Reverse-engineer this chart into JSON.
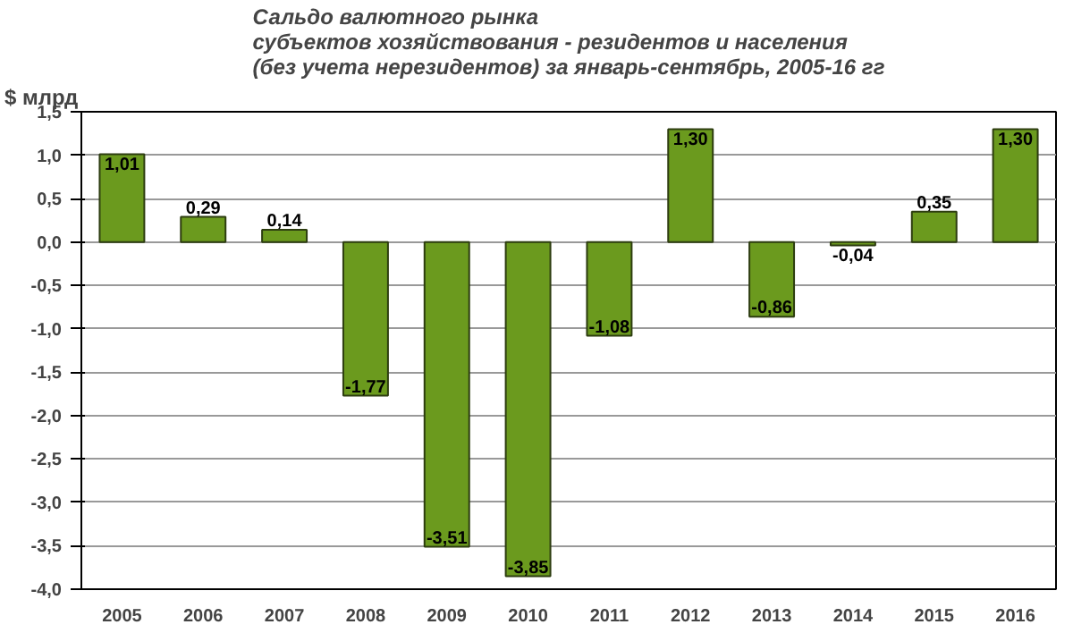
{
  "chart_data": {
    "type": "bar",
    "title": "Сальдо валютного рынка\nсубъектов хозяйствования - резидентов и населения\n(без учета нерезидентов) за январь-сентябрь, 2005-16 гг",
    "ylabel": "$ млрд",
    "categories": [
      "2005",
      "2006",
      "2007",
      "2008",
      "2009",
      "2010",
      "2011",
      "2012",
      "2013",
      "2014",
      "2015",
      "2016"
    ],
    "values": [
      1.01,
      0.29,
      0.14,
      -1.77,
      -3.51,
      -3.85,
      -1.08,
      1.3,
      -0.86,
      -0.04,
      0.35,
      1.3
    ],
    "value_labels": [
      "1,01",
      "0,29",
      "0,14",
      "-1,77",
      "-3,51",
      "-3,85",
      "-1,08",
      "1,30",
      "-0,86",
      "-0,04",
      "0,35",
      "1,30"
    ],
    "color": "#6b9a1e",
    "ylim": [
      -4,
      1.5
    ],
    "yticks": [
      {
        "value": -4,
        "label": "-4,0"
      },
      {
        "value": -3.5,
        "label": "-3,5"
      },
      {
        "value": -3,
        "label": "-3,0"
      },
      {
        "value": -2.5,
        "label": "-2,5"
      },
      {
        "value": -2,
        "label": "-2,0"
      },
      {
        "value": -1.5,
        "label": "-1,5"
      },
      {
        "value": -1,
        "label": "-1,0"
      },
      {
        "value": -0.5,
        "label": "-0,5"
      },
      {
        "value": 0,
        "label": "0,0"
      },
      {
        "value": 0.5,
        "label": "0,5"
      },
      {
        "value": 1,
        "label": "1,0"
      },
      {
        "value": 1.5,
        "label": "1,5"
      }
    ],
    "grid": "y"
  }
}
